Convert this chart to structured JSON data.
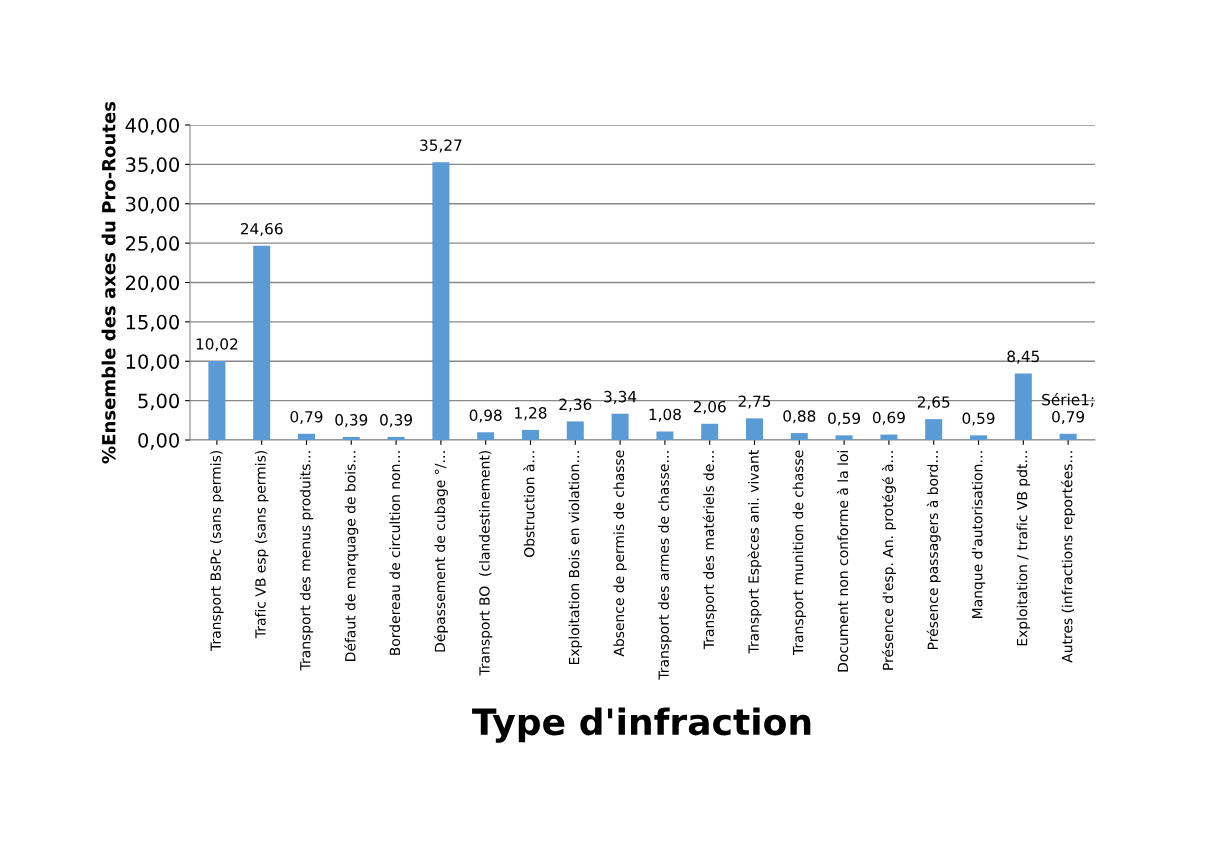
{
  "chart_data": {
    "type": "bar",
    "xlabel": "Type d'infraction",
    "ylabel": "%Ensemble des axes du Pro-Routes",
    "categories": [
      "Transport BsPc (sans permis)",
      "Trafic VB esp (sans permis)",
      "Transport des menus produits…",
      "Défaut de marquage de bois…",
      "Bordereau de circultion non…",
      "Dépassement de cubage °/…",
      "Transport BO  (clandestinement)",
      "Obstruction à…",
      "Exploitation Bois en violation…",
      "Absence de permis de chasse",
      "Transport des armes de chasse…",
      "Transport des matériels de…",
      "Transport Espèces ani. vivant",
      "Transport munition de chasse",
      "Document non conforme à la loi",
      "Présence d'esp. An. protégé à…",
      "Présence passagers à bord…",
      "Manque d'autorisation…",
      "Exploitation / trafic VB pdt…",
      "Autres (infractions reportées…"
    ],
    "values": [
      10.02,
      24.66,
      0.79,
      0.39,
      0.39,
      35.27,
      0.98,
      1.28,
      2.36,
      3.34,
      1.08,
      2.06,
      2.75,
      0.88,
      0.59,
      0.69,
      2.65,
      0.59,
      8.45,
      0.79
    ],
    "value_labels": [
      "10,02",
      "24,66",
      "0,79",
      "0,39",
      "0,39",
      "35,27",
      "0,98",
      "1,28",
      "2,36",
      "3,34",
      "1,08",
      "2,06",
      "2,75",
      "0,88",
      "0,59",
      "0,69",
      "2,65",
      "0,59",
      "8,45",
      "Série1; 0,79"
    ],
    "color": "#5b9bd5",
    "ylim": [
      0,
      40
    ],
    "yticks": [
      {
        "value": 0,
        "label": "0,00"
      },
      {
        "value": 5,
        "label": "5,00"
      },
      {
        "value": 10,
        "label": "10,00"
      },
      {
        "value": 15,
        "label": "15,00"
      },
      {
        "value": 20,
        "label": "20,00"
      },
      {
        "value": 25,
        "label": "25,00"
      },
      {
        "value": 30,
        "label": "30,00"
      },
      {
        "value": 35,
        "label": "35,00"
      },
      {
        "value": 40,
        "label": "40,00"
      }
    ],
    "grid": "y",
    "legend": false
  }
}
